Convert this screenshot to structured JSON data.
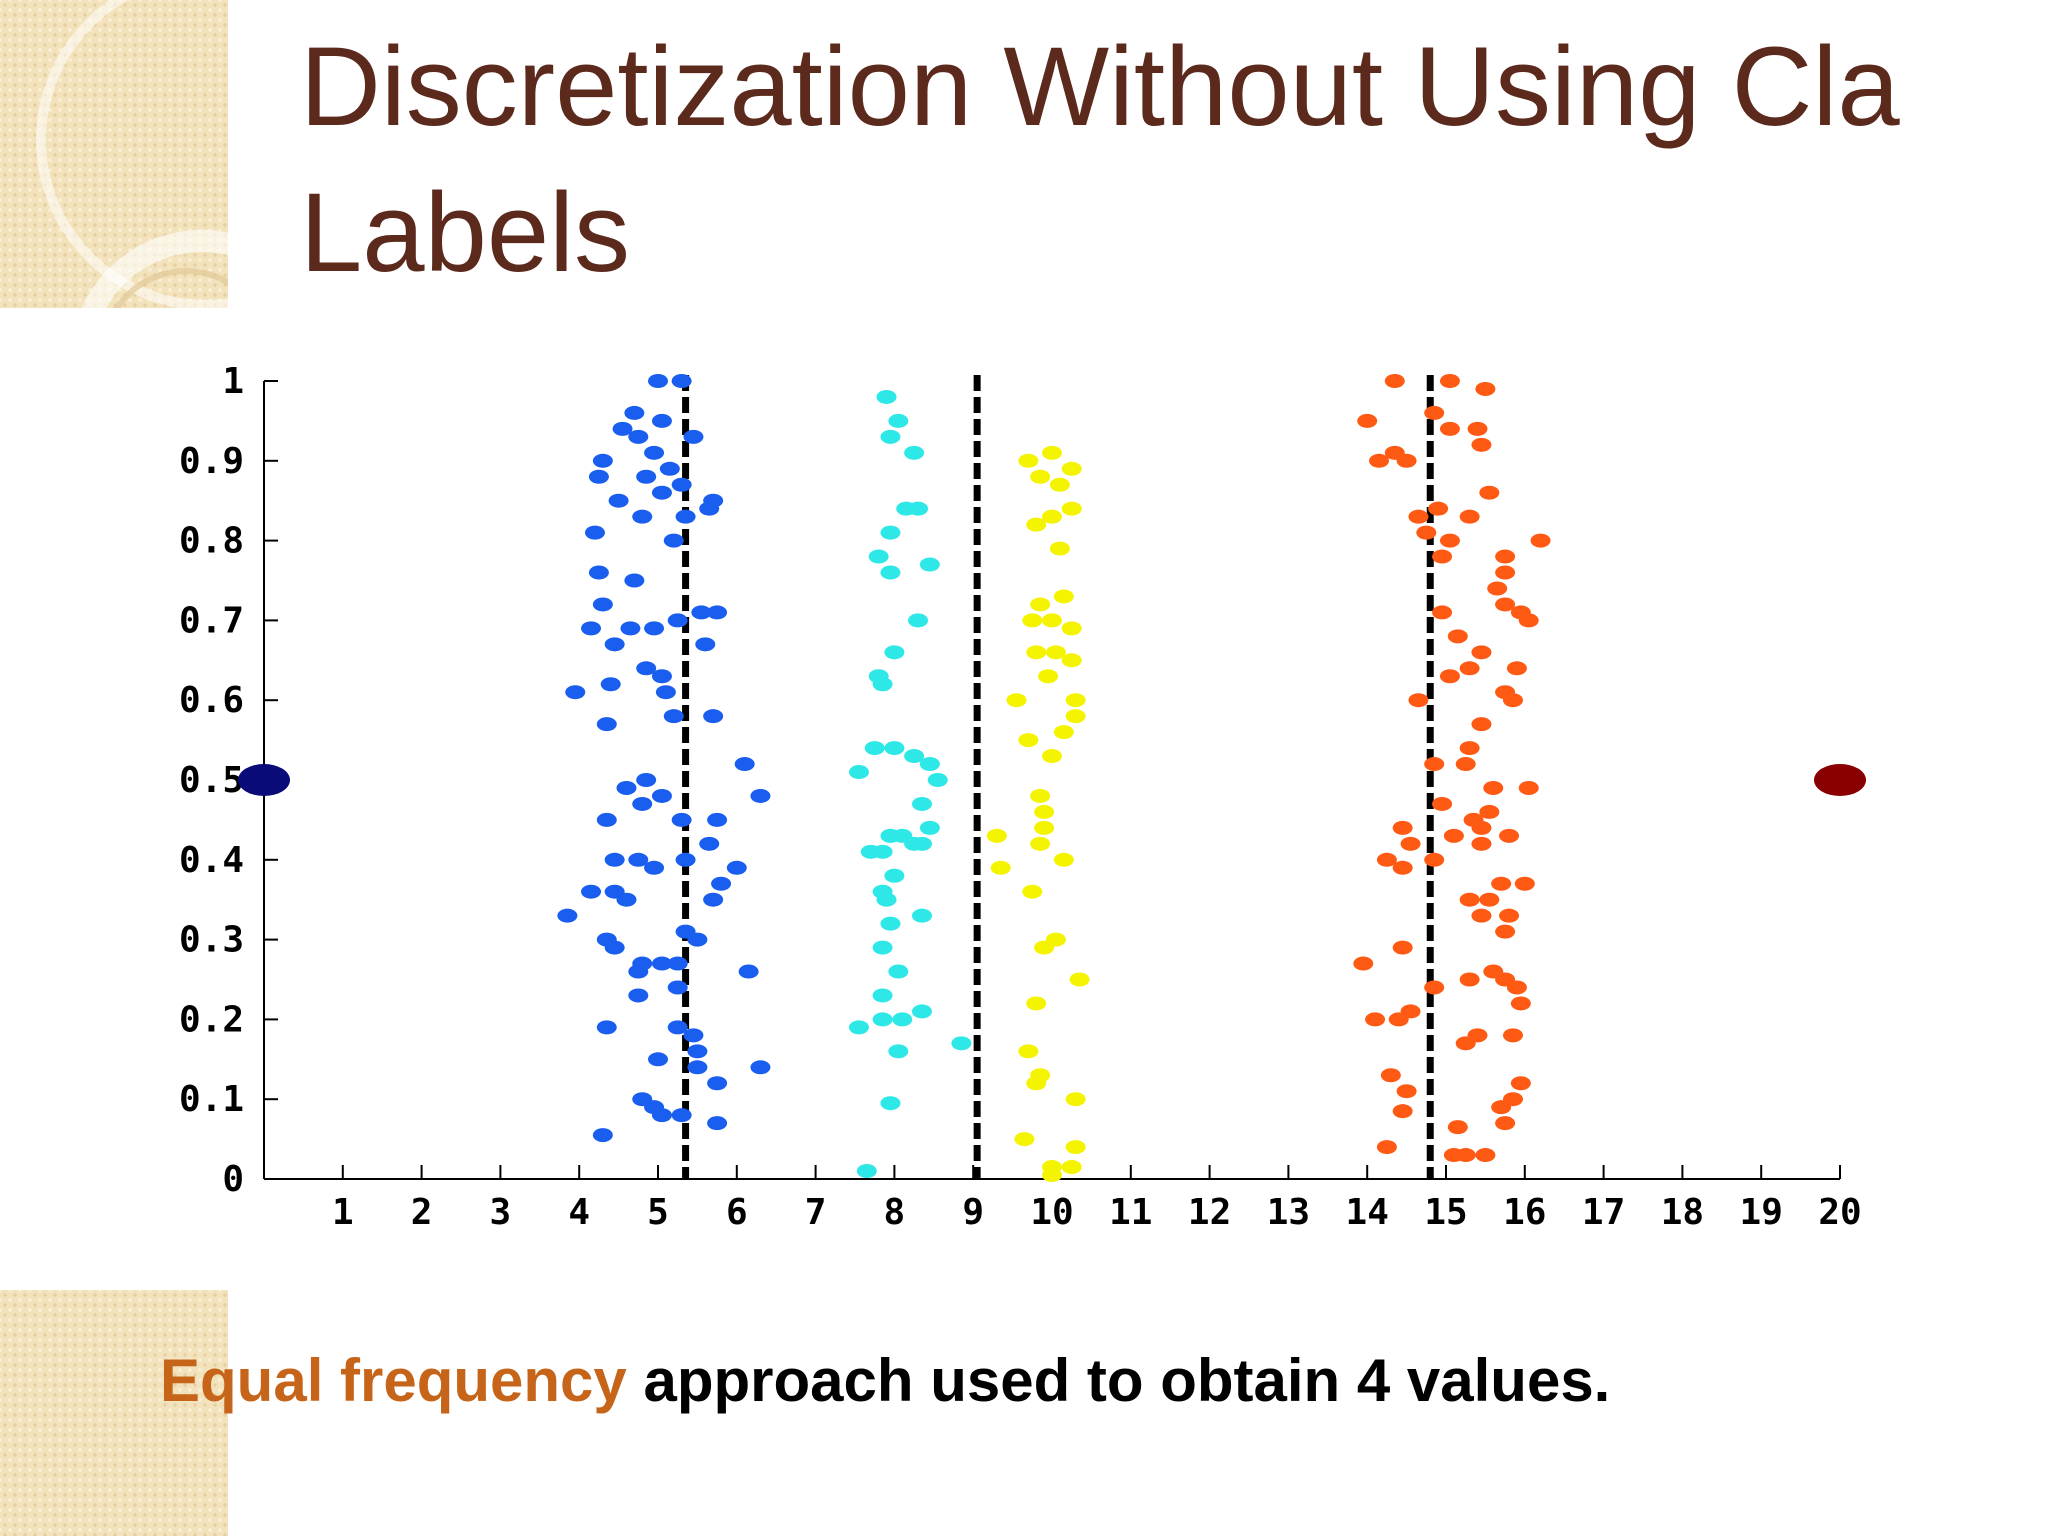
{
  "slide": {
    "title_line1": "Discretization Without Using Cla",
    "title_line2": "Labels",
    "caption_highlight": "Equal frequency",
    "caption_rest": " approach used to obtain 4 values."
  },
  "colors": {
    "title": "#5b2a1c",
    "caption_highlight": "#c6651a",
    "blue": "#1a5ef0",
    "cyan": "#2ee8e8",
    "yellow": "#f4f400",
    "orange": "#ff5a14",
    "navy": "#0a0a78",
    "darkred": "#8a0000"
  },
  "chart_data": {
    "type": "scatter",
    "xlim": [
      0,
      20
    ],
    "ylim": [
      0,
      1
    ],
    "x_ticks": [
      "1",
      "2",
      "3",
      "4",
      "5",
      "6",
      "7",
      "8",
      "9",
      "10",
      "11",
      "12",
      "13",
      "14",
      "15",
      "16",
      "17",
      "18",
      "19",
      "20"
    ],
    "y_ticks": [
      "0",
      "0.1",
      "0.2",
      "0.3",
      "0.4",
      "0.5",
      "0.6",
      "0.7",
      "0.8",
      "0.9",
      "1"
    ],
    "grid": false,
    "cut_points": [
      5.35,
      9.05,
      14.8
    ],
    "series": [
      {
        "color": "blue",
        "points": [
          [
            5.0,
            1.0
          ],
          [
            5.3,
            1.0
          ],
          [
            4.7,
            0.96
          ],
          [
            5.05,
            0.95
          ],
          [
            4.55,
            0.94
          ],
          [
            4.75,
            0.93
          ],
          [
            5.45,
            0.93
          ],
          [
            4.95,
            0.91
          ],
          [
            4.3,
            0.9
          ],
          [
            5.15,
            0.89
          ],
          [
            4.25,
            0.88
          ],
          [
            4.85,
            0.88
          ],
          [
            5.3,
            0.87
          ],
          [
            5.05,
            0.86
          ],
          [
            4.5,
            0.85
          ],
          [
            5.7,
            0.85
          ],
          [
            4.8,
            0.83
          ],
          [
            5.35,
            0.83
          ],
          [
            5.65,
            0.84
          ],
          [
            4.2,
            0.81
          ],
          [
            5.2,
            0.8
          ],
          [
            4.25,
            0.76
          ],
          [
            4.7,
            0.75
          ],
          [
            4.3,
            0.72
          ],
          [
            5.55,
            0.71
          ],
          [
            5.75,
            0.71
          ],
          [
            4.15,
            0.69
          ],
          [
            4.65,
            0.69
          ],
          [
            4.95,
            0.69
          ],
          [
            5.25,
            0.7
          ],
          [
            4.45,
            0.67
          ],
          [
            5.6,
            0.67
          ],
          [
            4.85,
            0.64
          ],
          [
            5.05,
            0.63
          ],
          [
            4.4,
            0.62
          ],
          [
            3.95,
            0.61
          ],
          [
            5.1,
            0.61
          ],
          [
            5.2,
            0.58
          ],
          [
            5.7,
            0.58
          ],
          [
            4.35,
            0.57
          ],
          [
            6.1,
            0.52
          ],
          [
            4.85,
            0.5
          ],
          [
            4.6,
            0.49
          ],
          [
            5.05,
            0.48
          ],
          [
            6.3,
            0.48
          ],
          [
            4.8,
            0.47
          ],
          [
            5.3,
            0.45
          ],
          [
            4.35,
            0.45
          ],
          [
            5.75,
            0.45
          ],
          [
            5.65,
            0.42
          ],
          [
            4.45,
            0.4
          ],
          [
            5.35,
            0.4
          ],
          [
            4.75,
            0.4
          ],
          [
            4.95,
            0.39
          ],
          [
            6.0,
            0.39
          ],
          [
            5.8,
            0.37
          ],
          [
            4.15,
            0.36
          ],
          [
            4.45,
            0.36
          ],
          [
            4.6,
            0.35
          ],
          [
            5.7,
            0.35
          ],
          [
            3.85,
            0.33
          ],
          [
            4.35,
            0.3
          ],
          [
            5.35,
            0.31
          ],
          [
            5.5,
            0.3
          ],
          [
            4.45,
            0.29
          ],
          [
            5.25,
            0.27
          ],
          [
            4.8,
            0.27
          ],
          [
            5.05,
            0.27
          ],
          [
            4.75,
            0.26
          ],
          [
            6.15,
            0.26
          ],
          [
            5.25,
            0.24
          ],
          [
            4.75,
            0.23
          ],
          [
            4.35,
            0.19
          ],
          [
            5.25,
            0.19
          ],
          [
            5.45,
            0.18
          ],
          [
            5.5,
            0.16
          ],
          [
            5.0,
            0.15
          ],
          [
            5.5,
            0.14
          ],
          [
            6.3,
            0.14
          ],
          [
            5.75,
            0.12
          ],
          [
            4.8,
            0.1
          ],
          [
            4.95,
            0.09
          ],
          [
            5.3,
            0.08
          ],
          [
            5.05,
            0.08
          ],
          [
            5.75,
            0.07
          ],
          [
            4.3,
            0.055
          ]
        ]
      },
      {
        "color": "cyan",
        "points": [
          [
            7.9,
            0.98
          ],
          [
            8.05,
            0.95
          ],
          [
            7.95,
            0.93
          ],
          [
            8.25,
            0.91
          ],
          [
            8.15,
            0.84
          ],
          [
            8.3,
            0.84
          ],
          [
            7.95,
            0.81
          ],
          [
            7.8,
            0.78
          ],
          [
            8.45,
            0.77
          ],
          [
            7.95,
            0.76
          ],
          [
            8.3,
            0.7
          ],
          [
            8.0,
            0.66
          ],
          [
            7.8,
            0.63
          ],
          [
            7.85,
            0.62
          ],
          [
            7.75,
            0.54
          ],
          [
            8.0,
            0.54
          ],
          [
            8.25,
            0.53
          ],
          [
            8.45,
            0.52
          ],
          [
            8.55,
            0.5
          ],
          [
            7.55,
            0.51
          ],
          [
            8.35,
            0.47
          ],
          [
            8.45,
            0.44
          ],
          [
            7.95,
            0.43
          ],
          [
            8.1,
            0.43
          ],
          [
            8.25,
            0.42
          ],
          [
            8.35,
            0.42
          ],
          [
            7.7,
            0.41
          ],
          [
            7.85,
            0.41
          ],
          [
            8.0,
            0.38
          ],
          [
            7.85,
            0.36
          ],
          [
            7.9,
            0.35
          ],
          [
            8.35,
            0.33
          ],
          [
            7.95,
            0.32
          ],
          [
            7.85,
            0.29
          ],
          [
            8.05,
            0.26
          ],
          [
            7.85,
            0.23
          ],
          [
            8.35,
            0.21
          ],
          [
            7.85,
            0.2
          ],
          [
            8.1,
            0.2
          ],
          [
            7.55,
            0.19
          ],
          [
            8.85,
            0.17
          ],
          [
            8.05,
            0.16
          ],
          [
            7.95,
            0.095
          ],
          [
            7.65,
            0.01
          ]
        ]
      },
      {
        "color": "yellow",
        "points": [
          [
            10.0,
            0.91
          ],
          [
            9.7,
            0.9
          ],
          [
            10.25,
            0.89
          ],
          [
            9.85,
            0.88
          ],
          [
            10.1,
            0.87
          ],
          [
            10.25,
            0.84
          ],
          [
            9.8,
            0.82
          ],
          [
            10.0,
            0.83
          ],
          [
            10.1,
            0.79
          ],
          [
            10.15,
            0.73
          ],
          [
            9.85,
            0.72
          ],
          [
            10.0,
            0.7
          ],
          [
            9.75,
            0.7
          ],
          [
            10.25,
            0.69
          ],
          [
            9.8,
            0.66
          ],
          [
            10.05,
            0.66
          ],
          [
            10.25,
            0.65
          ],
          [
            9.95,
            0.63
          ],
          [
            9.55,
            0.6
          ],
          [
            10.3,
            0.6
          ],
          [
            10.3,
            0.58
          ],
          [
            10.15,
            0.56
          ],
          [
            9.7,
            0.55
          ],
          [
            10.0,
            0.53
          ],
          [
            9.85,
            0.48
          ],
          [
            9.9,
            0.46
          ],
          [
            9.9,
            0.44
          ],
          [
            9.85,
            0.42
          ],
          [
            9.3,
            0.43
          ],
          [
            10.15,
            0.4
          ],
          [
            9.35,
            0.39
          ],
          [
            9.75,
            0.36
          ],
          [
            10.05,
            0.3
          ],
          [
            9.9,
            0.29
          ],
          [
            10.35,
            0.25
          ],
          [
            9.8,
            0.22
          ],
          [
            9.7,
            0.16
          ],
          [
            9.8,
            0.12
          ],
          [
            9.85,
            0.13
          ],
          [
            10.3,
            0.1
          ],
          [
            9.65,
            0.05
          ],
          [
            10.3,
            0.04
          ],
          [
            10.0,
            0.015
          ],
          [
            10.25,
            0.015
          ],
          [
            10.0,
            0.005
          ]
        ]
      },
      {
        "color": "orange",
        "points": [
          [
            14.35,
            1.0
          ],
          [
            15.05,
            1.0
          ],
          [
            15.5,
            0.99
          ],
          [
            14.85,
            0.96
          ],
          [
            14.0,
            0.95
          ],
          [
            15.4,
            0.94
          ],
          [
            15.05,
            0.94
          ],
          [
            15.45,
            0.92
          ],
          [
            14.35,
            0.91
          ],
          [
            14.5,
            0.9
          ],
          [
            14.15,
            0.9
          ],
          [
            15.55,
            0.86
          ],
          [
            14.9,
            0.84
          ],
          [
            15.3,
            0.83
          ],
          [
            14.65,
            0.83
          ],
          [
            14.75,
            0.81
          ],
          [
            15.05,
            0.8
          ],
          [
            16.2,
            0.8
          ],
          [
            14.95,
            0.78
          ],
          [
            15.75,
            0.78
          ],
          [
            15.75,
            0.76
          ],
          [
            15.65,
            0.74
          ],
          [
            15.75,
            0.72
          ],
          [
            15.95,
            0.71
          ],
          [
            14.95,
            0.71
          ],
          [
            16.05,
            0.7
          ],
          [
            15.15,
            0.68
          ],
          [
            15.45,
            0.66
          ],
          [
            15.9,
            0.64
          ],
          [
            15.3,
            0.64
          ],
          [
            15.05,
            0.63
          ],
          [
            15.85,
            0.6
          ],
          [
            14.65,
            0.6
          ],
          [
            15.75,
            0.61
          ],
          [
            15.45,
            0.57
          ],
          [
            15.3,
            0.54
          ],
          [
            15.25,
            0.52
          ],
          [
            14.85,
            0.52
          ],
          [
            15.6,
            0.49
          ],
          [
            16.05,
            0.49
          ],
          [
            14.95,
            0.47
          ],
          [
            15.55,
            0.46
          ],
          [
            15.35,
            0.45
          ],
          [
            15.1,
            0.43
          ],
          [
            15.45,
            0.44
          ],
          [
            14.45,
            0.44
          ],
          [
            15.8,
            0.43
          ],
          [
            14.55,
            0.42
          ],
          [
            15.45,
            0.42
          ],
          [
            14.85,
            0.4
          ],
          [
            14.25,
            0.4
          ],
          [
            14.45,
            0.39
          ],
          [
            16.0,
            0.37
          ],
          [
            15.7,
            0.37
          ],
          [
            15.55,
            0.35
          ],
          [
            15.3,
            0.35
          ],
          [
            15.45,
            0.33
          ],
          [
            15.75,
            0.31
          ],
          [
            15.8,
            0.33
          ],
          [
            14.45,
            0.29
          ],
          [
            13.95,
            0.27
          ],
          [
            15.3,
            0.25
          ],
          [
            15.6,
            0.26
          ],
          [
            15.75,
            0.25
          ],
          [
            15.9,
            0.24
          ],
          [
            14.85,
            0.24
          ],
          [
            14.55,
            0.21
          ],
          [
            15.95,
            0.22
          ],
          [
            14.1,
            0.2
          ],
          [
            14.4,
            0.2
          ],
          [
            15.4,
            0.18
          ],
          [
            15.25,
            0.17
          ],
          [
            15.85,
            0.18
          ],
          [
            15.95,
            0.12
          ],
          [
            15.85,
            0.1
          ],
          [
            14.3,
            0.13
          ],
          [
            14.5,
            0.11
          ],
          [
            15.7,
            0.09
          ],
          [
            14.45,
            0.085
          ],
          [
            15.15,
            0.065
          ],
          [
            15.75,
            0.07
          ],
          [
            14.25,
            0.04
          ],
          [
            15.25,
            0.03
          ],
          [
            15.5,
            0.03
          ],
          [
            15.1,
            0.03
          ]
        ]
      },
      {
        "color": "navy",
        "points": [
          [
            0.0,
            0.5
          ]
        ],
        "size": "large"
      },
      {
        "color": "darkred",
        "points": [
          [
            20.0,
            0.5
          ]
        ],
        "size": "large"
      }
    ]
  }
}
